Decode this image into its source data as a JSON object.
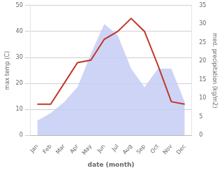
{
  "chart_data": {
    "type": "line",
    "categories": [
      "Jan",
      "Feb",
      "Mar",
      "Apr",
      "May",
      "Jun",
      "Jul",
      "Aug",
      "Sep",
      "Oct",
      "Nov",
      "Dec"
    ],
    "xlabel": "date (month)",
    "ylabel": "max temp (C)",
    "y2label": "med. precipitation (kg/m2)",
    "series": [
      {
        "type": "area",
        "color": "#c5cdf5",
        "axis": "y2",
        "values": [
          4,
          6,
          9,
          13,
          22,
          30,
          27,
          18,
          13,
          18,
          18,
          9
        ]
      },
      {
        "type": "line",
        "color": "#c0392b",
        "values": [
          12,
          12,
          20,
          28,
          29,
          37,
          40,
          45,
          40,
          27,
          13,
          12
        ]
      }
    ],
    "ylim": [
      0,
      50
    ],
    "yticks": [
      0,
      10,
      20,
      30,
      40,
      50
    ],
    "y2lim": [
      0,
      35
    ],
    "y2ticks": [
      0,
      5,
      10,
      15,
      20,
      25,
      30,
      35
    ],
    "grid": true
  }
}
